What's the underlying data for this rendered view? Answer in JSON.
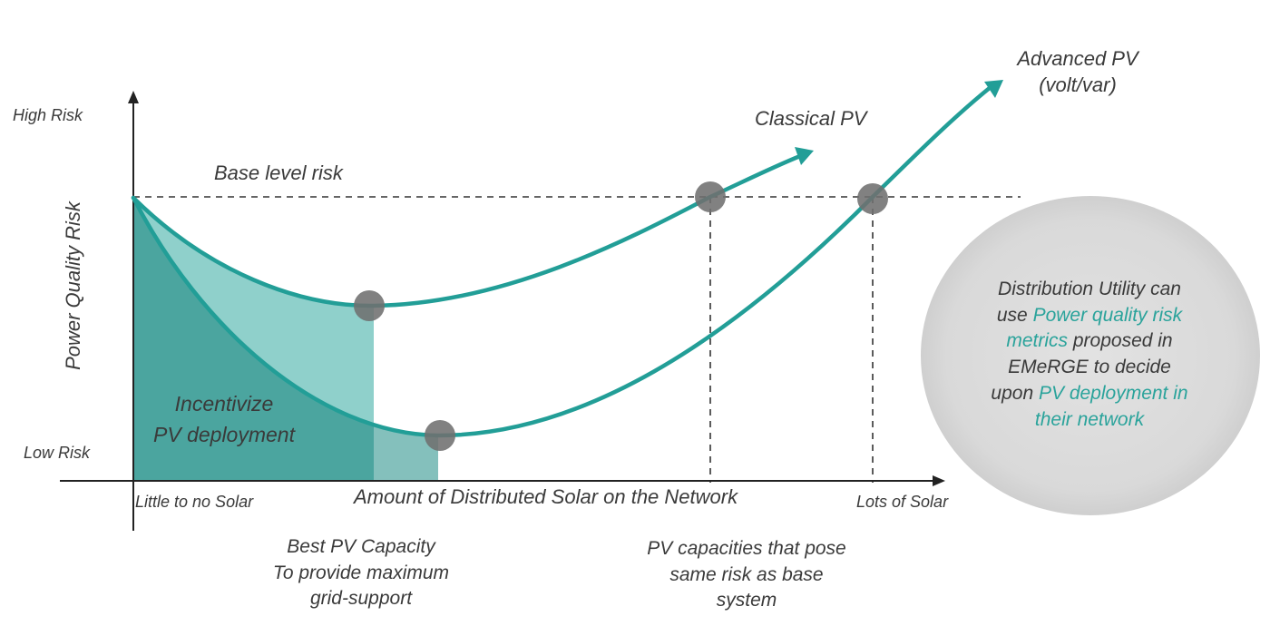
{
  "axes": {
    "y_label": "Power Quality Risk",
    "y_high": "High Risk",
    "y_low": "Low Risk",
    "x_label": "Amount of Distributed Solar on the Network",
    "x_low": "Little to no Solar",
    "x_high": "Lots of Solar"
  },
  "labels": {
    "base_risk": "Base level risk",
    "classical": "Classical PV",
    "advanced_line1": "Advanced PV",
    "advanced_line2": "(volt/var)",
    "incentivize_line1": "Incentivize",
    "incentivize_line2": "PV deployment",
    "best_line1": "Best PV Capacity",
    "best_line2": "To provide maximum",
    "best_line3": "grid-support",
    "same_line1": "PV capacities that pose",
    "same_line2": "same risk as base",
    "same_line3": "system"
  },
  "callout": {
    "line1": "Distribution Utility can",
    "line2_a": "use ",
    "line2_b": "Power quality risk",
    "line3_a": "metrics",
    "line3_b": " proposed in",
    "line4": "EMeRGE to decide",
    "line5_a": "upon ",
    "line5_b": "PV deployment in",
    "line6": "their network"
  },
  "colors": {
    "curve": "#229e97",
    "fill_dark": "#4ba59f",
    "fill_light": "#8fd0cb",
    "fill_light2": "#84c0bc",
    "marker": "#6f6f6f",
    "axis": "#222222",
    "callout_bg": "#d9d9d9",
    "highlight": "#2aa39b",
    "text": "#3a3a3a"
  }
}
